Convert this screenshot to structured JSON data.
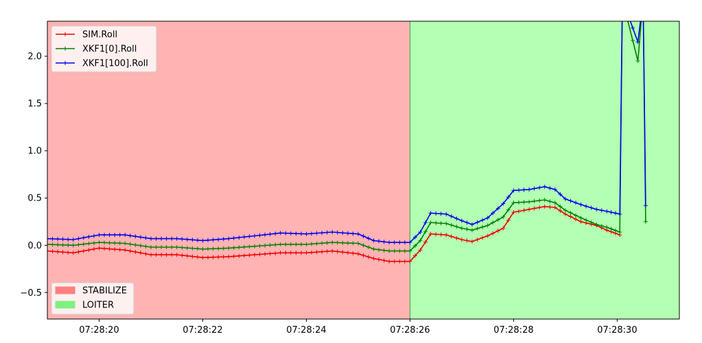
{
  "chart_data": {
    "type": "line",
    "xlabel": "",
    "ylabel": "",
    "grid": false,
    "x_unit": "seconds past 07:28:00",
    "xlim": [
      19.0,
      31.2
    ],
    "ylim": [
      -0.78,
      2.37
    ],
    "x_ticks": [
      {
        "value": 20,
        "label": "07:28:20"
      },
      {
        "value": 22,
        "label": "07:28:22"
      },
      {
        "value": 24,
        "label": "07:28:24"
      },
      {
        "value": 26,
        "label": "07:28:26"
      },
      {
        "value": 28,
        "label": "07:28:28"
      },
      {
        "value": 30,
        "label": "07:28:30"
      }
    ],
    "y_ticks": [
      {
        "value": -0.5,
        "label": "−0.5"
      },
      {
        "value": 0.0,
        "label": "0.0"
      },
      {
        "value": 0.5,
        "label": "0.5"
      },
      {
        "value": 1.0,
        "label": "1.0"
      },
      {
        "value": 1.5,
        "label": "1.5"
      },
      {
        "value": 2.0,
        "label": "2.0"
      }
    ],
    "regions": [
      {
        "name": "STABILIZE",
        "x_start": 19.0,
        "x_end": 26.0,
        "fill": "#ffb3b3",
        "legend_color": "#ff8080"
      },
      {
        "name": "LOITER",
        "x_start": 26.0,
        "x_end": 31.2,
        "fill": "#b3ffb3",
        "legend_color": "#80f080"
      }
    ],
    "series": [
      {
        "name": "SIM.Roll",
        "color": "#ee0000",
        "x": [
          19.0,
          19.5,
          20.0,
          20.5,
          21.0,
          21.5,
          22.0,
          22.5,
          23.0,
          23.5,
          24.0,
          24.5,
          25.0,
          25.3,
          25.6,
          26.0,
          26.2,
          26.4,
          26.7,
          27.0,
          27.2,
          27.5,
          27.8,
          28.0,
          28.3,
          28.6,
          28.8,
          29.0,
          29.3,
          29.6,
          29.8,
          30.05
        ],
        "y": [
          -0.06,
          -0.08,
          -0.03,
          -0.05,
          -0.1,
          -0.1,
          -0.13,
          -0.12,
          -0.1,
          -0.08,
          -0.08,
          -0.06,
          -0.09,
          -0.14,
          -0.17,
          -0.17,
          -0.05,
          0.12,
          0.11,
          0.06,
          0.04,
          0.1,
          0.18,
          0.35,
          0.38,
          0.41,
          0.4,
          0.33,
          0.25,
          0.21,
          0.16,
          0.11
        ]
      },
      {
        "name": "XKF1[0].Roll",
        "color": "#008000",
        "x": [
          19.0,
          19.5,
          20.0,
          20.5,
          21.0,
          21.5,
          22.0,
          22.5,
          23.0,
          23.5,
          24.0,
          24.5,
          25.0,
          25.3,
          25.6,
          26.0,
          26.2,
          26.4,
          26.7,
          27.0,
          27.2,
          27.5,
          27.8,
          28.0,
          28.3,
          28.6,
          28.8,
          29.0,
          29.3,
          29.6,
          29.8,
          30.05,
          30.1,
          30.4,
          30.5,
          30.55
        ],
        "y": [
          0.01,
          0.0,
          0.03,
          0.02,
          -0.02,
          -0.02,
          -0.04,
          -0.03,
          -0.01,
          0.01,
          0.01,
          0.03,
          0.02,
          -0.04,
          -0.06,
          -0.06,
          0.05,
          0.24,
          0.23,
          0.18,
          0.16,
          0.21,
          0.3,
          0.45,
          0.46,
          0.48,
          0.45,
          0.37,
          0.29,
          0.22,
          0.19,
          0.14,
          2.6,
          1.95,
          2.6,
          0.25
        ]
      },
      {
        "name": "XKF1[100].Roll",
        "color": "#0000ee",
        "x": [
          19.0,
          19.5,
          20.0,
          20.5,
          21.0,
          21.5,
          22.0,
          22.5,
          23.0,
          23.5,
          24.0,
          24.5,
          25.0,
          25.3,
          25.6,
          26.0,
          26.2,
          26.4,
          26.7,
          27.0,
          27.2,
          27.5,
          27.8,
          28.0,
          28.3,
          28.6,
          28.8,
          29.0,
          29.3,
          29.6,
          29.8,
          30.05,
          30.1,
          30.4,
          30.5,
          30.55
        ],
        "y": [
          0.07,
          0.06,
          0.11,
          0.11,
          0.07,
          0.07,
          0.05,
          0.07,
          0.1,
          0.13,
          0.12,
          0.14,
          0.12,
          0.05,
          0.03,
          0.03,
          0.14,
          0.34,
          0.33,
          0.26,
          0.22,
          0.29,
          0.44,
          0.58,
          0.59,
          0.62,
          0.59,
          0.49,
          0.43,
          0.38,
          0.36,
          0.33,
          2.6,
          2.15,
          2.6,
          0.42
        ]
      }
    ],
    "legend_lines": {
      "placement": "upper-left"
    },
    "legend_regions": {
      "placement": "lower-left"
    }
  }
}
